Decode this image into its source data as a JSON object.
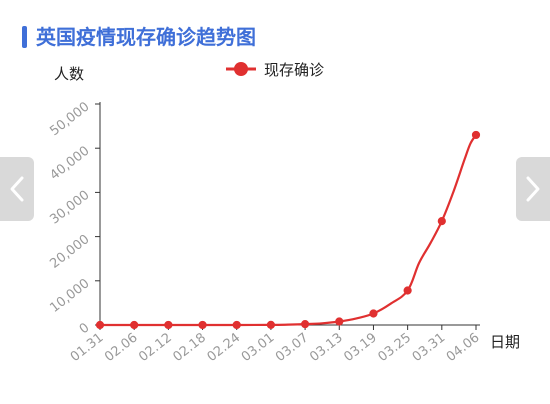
{
  "header": {
    "title": "英国疫情现存确诊趋势图"
  },
  "navigation": {
    "prev_icon": "chevron-left-icon",
    "next_icon": "chevron-right-icon"
  },
  "colors": {
    "accent": "#3f6fd8",
    "series": "#e03030",
    "axis_text": "#999999",
    "nav_bg": "#d9d9d9"
  },
  "chart_data": {
    "type": "line",
    "title": "英国疫情现存确诊趋势图",
    "ylabel": "人数",
    "xlabel": "日期",
    "ylim": [
      0,
      50000
    ],
    "yticks": [
      0,
      10000,
      20000,
      30000,
      40000,
      50000
    ],
    "ytick_labels": [
      "0",
      "10,000",
      "20,000",
      "30,000",
      "40,000",
      "50,000"
    ],
    "xtick_labels": [
      "01.31",
      "02.06",
      "02.12",
      "02.18",
      "02.24",
      "03.01",
      "03.07",
      "03.13",
      "03.19",
      "03.25",
      "03.31",
      "04.06"
    ],
    "legend": "top-center",
    "grid": false,
    "series": [
      {
        "name": "现存确诊",
        "markers": [
          {
            "x": "01.31",
            "y": 2
          },
          {
            "x": "02.06",
            "y": 3
          },
          {
            "x": "02.12",
            "y": 9
          },
          {
            "x": "02.18",
            "y": 9
          },
          {
            "x": "02.24",
            "y": 9
          },
          {
            "x": "03.01",
            "y": 30
          },
          {
            "x": "03.07",
            "y": 200
          },
          {
            "x": "03.13",
            "y": 800
          },
          {
            "x": "03.19",
            "y": 2600
          },
          {
            "x": "03.25",
            "y": 7800
          },
          {
            "x": "03.31",
            "y": 23500
          },
          {
            "x": "04.06",
            "y": 43000
          }
        ],
        "curve": [
          {
            "x": "01.31",
            "y": 2
          },
          {
            "x": "02.06",
            "y": 3
          },
          {
            "x": "02.12",
            "y": 9
          },
          {
            "x": "02.18",
            "y": 9
          },
          {
            "x": "02.24",
            "y": 9
          },
          {
            "x": "03.01",
            "y": 30
          },
          {
            "x": "03.04",
            "y": 80
          },
          {
            "x": "03.07",
            "y": 200
          },
          {
            "x": "03.10",
            "y": 380
          },
          {
            "x": "03.13",
            "y": 800
          },
          {
            "x": "03.16",
            "y": 1500
          },
          {
            "x": "03.19",
            "y": 2600
          },
          {
            "x": "03.22",
            "y": 4800
          },
          {
            "x": "03.25",
            "y": 7800
          },
          {
            "x": "03.27",
            "y": 14000
          },
          {
            "x": "03.29",
            "y": 18500
          },
          {
            "x": "03.31",
            "y": 23500
          },
          {
            "x": "04.02",
            "y": 30000
          },
          {
            "x": "04.04",
            "y": 37500
          },
          {
            "x": "04.05",
            "y": 41000
          },
          {
            "x": "04.06",
            "y": 43000
          }
        ]
      }
    ]
  }
}
